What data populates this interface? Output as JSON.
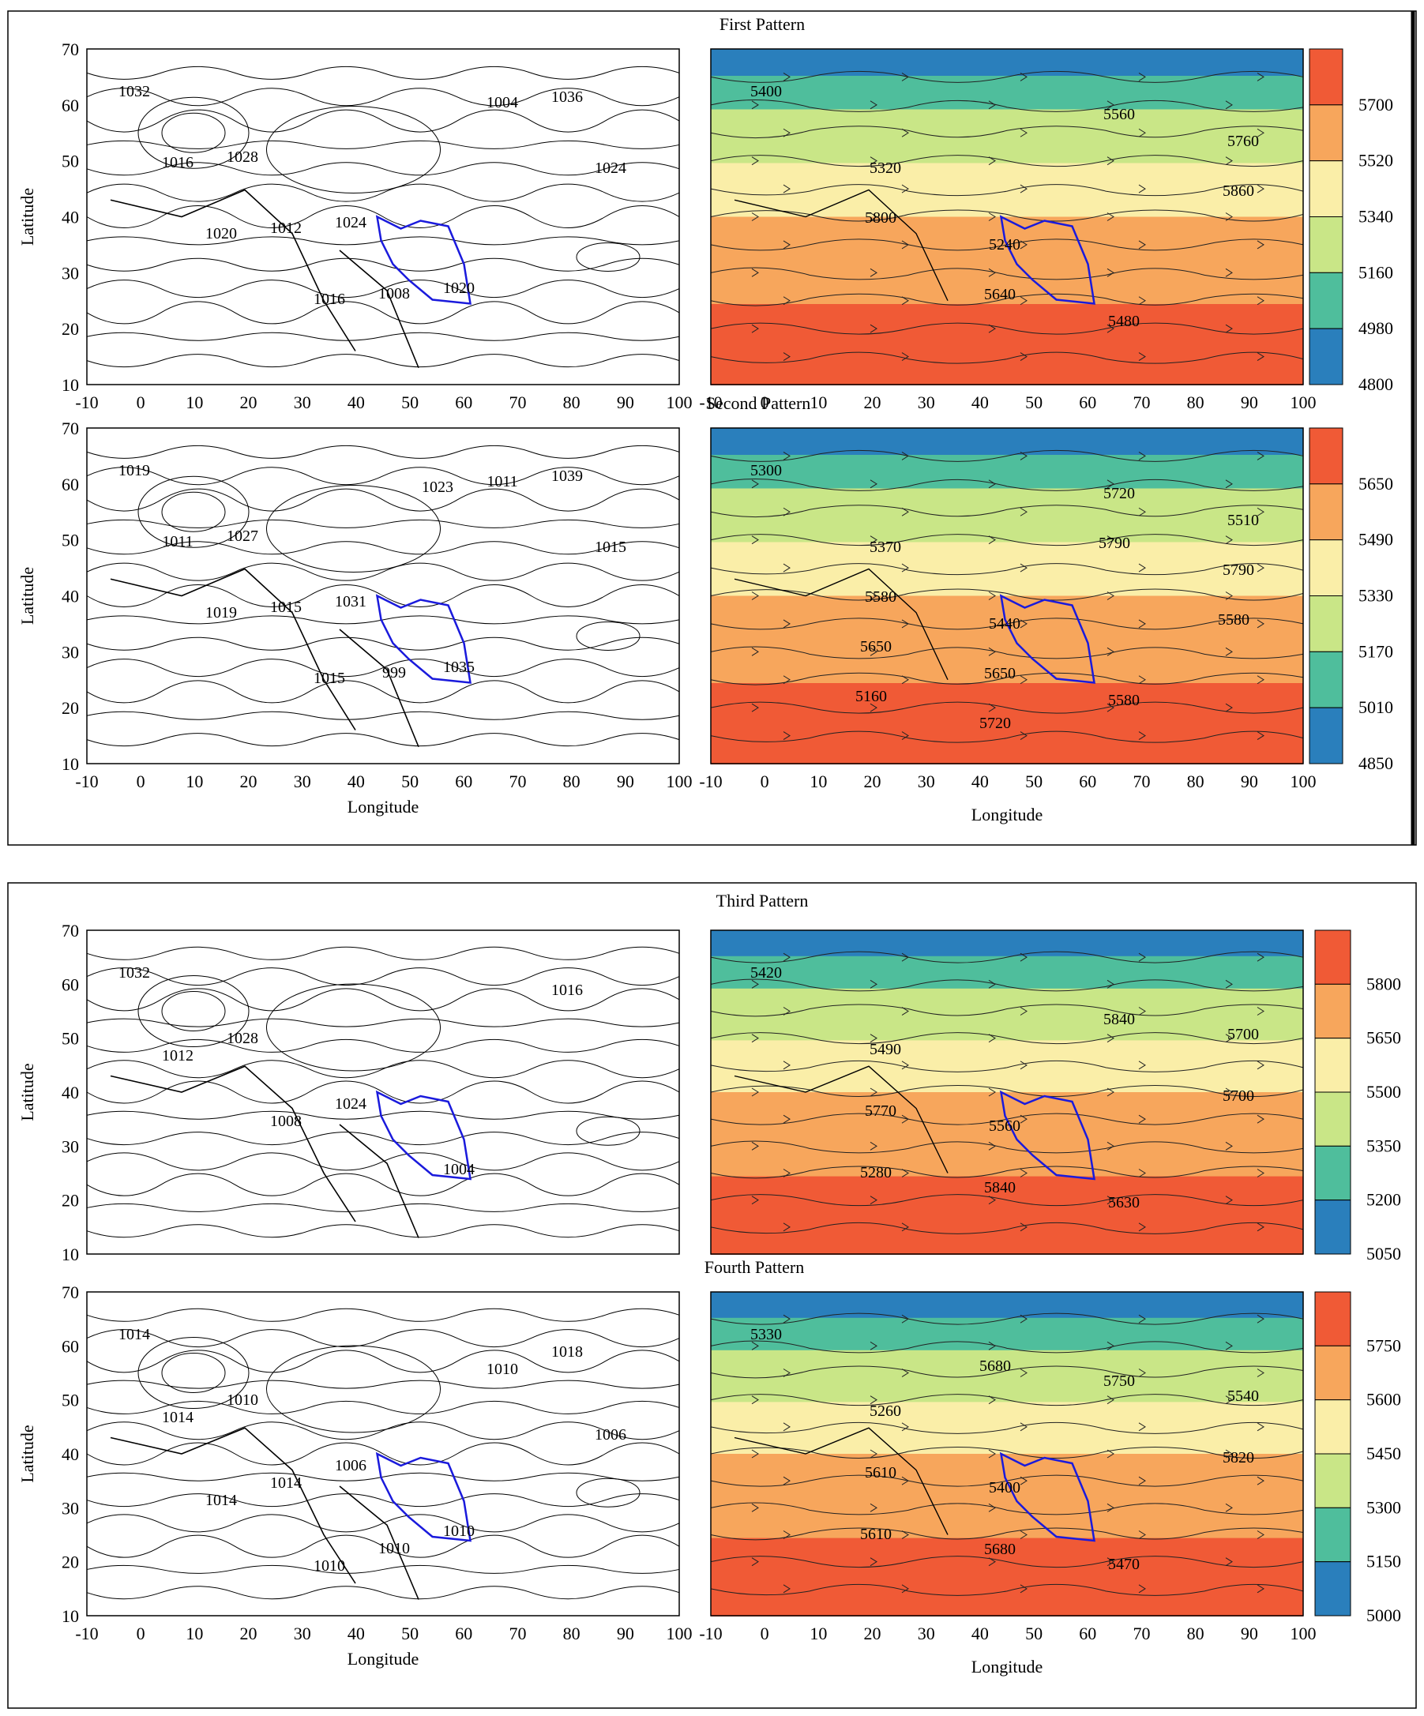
{
  "figure": {
    "axis_label_latitude": "Latitude",
    "axis_label_longitude": "Longitude",
    "lon_ticks": [
      "-10",
      "0",
      "10",
      "20",
      "30",
      "40",
      "50",
      "60",
      "70",
      "80",
      "90",
      "100"
    ],
    "lat_ticks": [
      "70",
      "60",
      "50",
      "40",
      "30",
      "20",
      "10"
    ],
    "border_color": "#1a1adc"
  },
  "patterns": [
    {
      "title": "First Pattern",
      "slp_labels": [
        "1032",
        "1028",
        "1024",
        "1020",
        "1036",
        "1016",
        "1012",
        "1008",
        "1004",
        "1024",
        "1020",
        "1016"
      ],
      "hgt_labels": [
        "5400",
        "5320",
        "5240",
        "5480",
        "5760",
        "5800",
        "5640",
        "5560",
        "5860"
      ],
      "colorbar_ticks": [
        "5700",
        "5520",
        "5340",
        "5160",
        "4980",
        "4800"
      ]
    },
    {
      "title": "Second Pattern",
      "slp_labels": [
        "1019",
        "1027",
        "1031",
        "1035",
        "1039",
        "1011",
        "1015",
        "999",
        "1011",
        "1015",
        "1019",
        "1015",
        "1023"
      ],
      "hgt_labels": [
        "5300",
        "5370",
        "5440",
        "5580",
        "5510",
        "5580",
        "5650",
        "5720",
        "5790",
        "5650",
        "5720",
        "5790",
        "5580",
        "5160"
      ],
      "colorbar_ticks": [
        "5650",
        "5490",
        "5330",
        "5170",
        "5010",
        "4850"
      ]
    },
    {
      "title": "Third Pattern",
      "slp_labels": [
        "1032",
        "1028",
        "1024",
        "1004",
        "1016",
        "1012",
        "1008"
      ],
      "hgt_labels": [
        "5420",
        "5490",
        "5560",
        "5630",
        "5700",
        "5770",
        "5840",
        "5840",
        "5700",
        "5280"
      ],
      "colorbar_ticks": [
        "5800",
        "5650",
        "5500",
        "5350",
        "5200",
        "5050"
      ]
    },
    {
      "title": "Fourth Pattern",
      "slp_labels": [
        "1014",
        "1010",
        "1006",
        "1010",
        "1018",
        "1014",
        "1014",
        "1010",
        "1010",
        "1006",
        "1014",
        "1010"
      ],
      "hgt_labels": [
        "5330",
        "5260",
        "5400",
        "5470",
        "5540",
        "5610",
        "5680",
        "5750",
        "5820",
        "5610",
        "5680"
      ],
      "colorbar_ticks": [
        "5750",
        "5600",
        "5450",
        "5300",
        "5150",
        "5000"
      ]
    }
  ],
  "colorbar_colors": [
    "#f05a36",
    "#f7a65c",
    "#faeea8",
    "#c9e687",
    "#4fbe9c",
    "#2a7fbc"
  ]
}
